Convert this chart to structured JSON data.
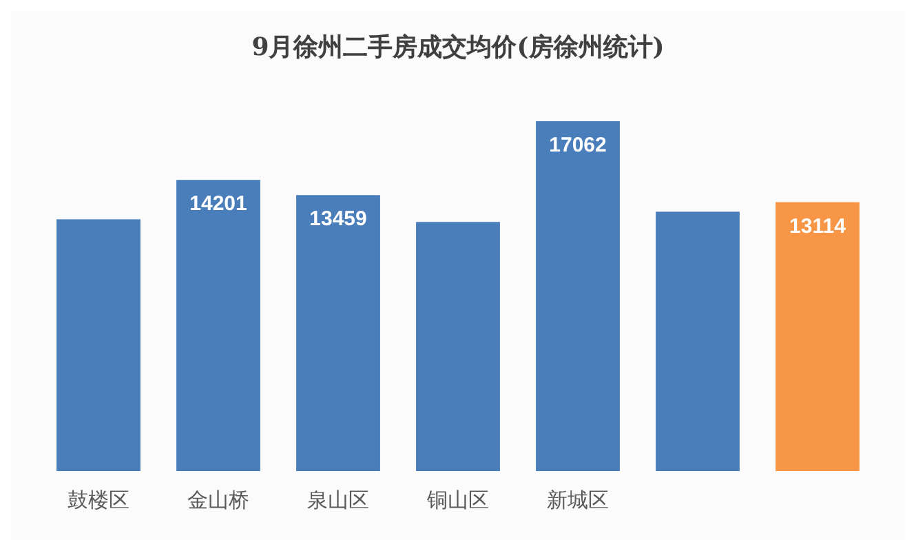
{
  "chart_data": {
    "type": "bar",
    "title": "9月徐州二手房成交均价(房徐州统计)",
    "categories": [
      "鼓楼区",
      "金山桥",
      "泉山区",
      "铜山区",
      "新城区",
      null,
      null
    ],
    "values": [
      12280,
      14201,
      13459,
      12150,
      17062,
      12650,
      13114
    ],
    "colors": [
      "#4a7ebb",
      "#4a7ebb",
      "#4a7ebb",
      "#4a7ebb",
      "#4a7ebb",
      "#4a7ebb",
      "#f79646"
    ],
    "value_labels": [
      null,
      "14201",
      "13459",
      null,
      "17062",
      null,
      "13114"
    ]
  }
}
